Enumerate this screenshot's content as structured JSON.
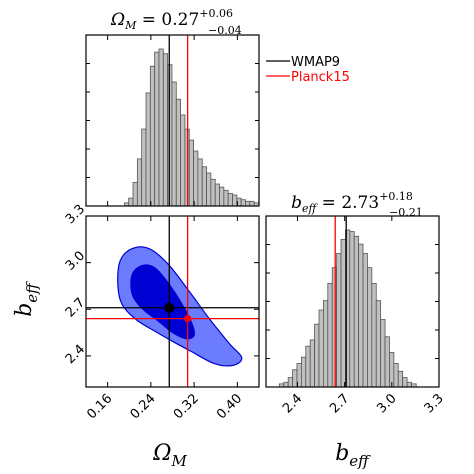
{
  "chart_data": [
    {
      "type": "histogram",
      "panel": "omega_m_marginal",
      "title": {
        "main": "Ω",
        "sub": "M",
        "eq": " = 0.27",
        "sup": "+0.06",
        "inf": "−0.04"
      },
      "x_range": [
        0.12,
        0.44
      ],
      "bin_edges": [
        0.191,
        0.199,
        0.207,
        0.215,
        0.223,
        0.231,
        0.239,
        0.247,
        0.255,
        0.263,
        0.271,
        0.279,
        0.287,
        0.295,
        0.303,
        0.311,
        0.319,
        0.327,
        0.335,
        0.343,
        0.351,
        0.359,
        0.367,
        0.375,
        0.383,
        0.391,
        0.399,
        0.407,
        0.415,
        0.423,
        0.431,
        0.44
      ],
      "values": [
        0.02,
        0.05,
        0.15,
        0.3,
        0.49,
        0.72,
        0.89,
        0.98,
        1.0,
        0.97,
        0.9,
        0.79,
        0.68,
        0.58,
        0.49,
        0.42,
        0.35,
        0.3,
        0.25,
        0.21,
        0.17,
        0.14,
        0.12,
        0.1,
        0.08,
        0.07,
        0.05,
        0.04,
        0.03,
        0.03,
        0.02
      ],
      "lines": {
        "wmap9": 0.274,
        "planck15": 0.308
      }
    },
    {
      "type": "contour",
      "panel": "joint",
      "x_label": {
        "main": "Ω",
        "sub": "M"
      },
      "y_label": {
        "main": "b",
        "sub": "eff"
      },
      "x_range": [
        0.12,
        0.44
      ],
      "y_range": [
        2.2,
        3.3
      ],
      "x_ticks": [
        "0.16",
        "0.24",
        "0.32",
        "0.40"
      ],
      "x_tick_values": [
        0.16,
        0.24,
        0.32,
        0.4
      ],
      "y_ticks": [
        "2.4",
        "2.7",
        "3.0",
        "3.3"
      ],
      "y_tick_values": [
        2.4,
        2.7,
        3.0,
        3.3
      ],
      "confidence_68": [
        [
          0.205,
          2.92
        ],
        [
          0.222,
          2.98
        ],
        [
          0.246,
          2.97
        ],
        [
          0.272,
          2.87
        ],
        [
          0.3,
          2.72
        ],
        [
          0.317,
          2.6
        ],
        [
          0.32,
          2.53
        ],
        [
          0.305,
          2.51
        ],
        [
          0.28,
          2.55
        ],
        [
          0.255,
          2.62
        ],
        [
          0.222,
          2.71
        ],
        [
          0.205,
          2.8
        ]
      ],
      "confidence_95": [
        [
          0.179,
          2.85
        ],
        [
          0.183,
          3.01
        ],
        [
          0.205,
          3.09
        ],
        [
          0.237,
          3.09
        ],
        [
          0.272,
          2.99
        ],
        [
          0.312,
          2.81
        ],
        [
          0.348,
          2.64
        ],
        [
          0.385,
          2.48
        ],
        [
          0.408,
          2.39
        ],
        [
          0.393,
          2.34
        ],
        [
          0.358,
          2.35
        ],
        [
          0.314,
          2.43
        ],
        [
          0.282,
          2.49
        ],
        [
          0.252,
          2.55
        ],
        [
          0.214,
          2.63
        ],
        [
          0.187,
          2.73
        ]
      ],
      "points": [
        {
          "name": "WMAP9",
          "x": 0.274,
          "y": 2.71
        },
        {
          "name": "Planck15",
          "x": 0.308,
          "y": 2.64
        }
      ]
    },
    {
      "type": "histogram",
      "panel": "b_eff_marginal",
      "title": {
        "main": "b",
        "sub": "eff",
        "eq": " = 2.73",
        "sup": "+0.18",
        "inf": "−0.21"
      },
      "x_label": {
        "main": "b",
        "sub": "eff"
      },
      "x_range": [
        2.2,
        3.3
      ],
      "x_ticks": [
        "2.4",
        "2.7",
        "3.0",
        "3.3"
      ],
      "x_tick_values": [
        2.4,
        2.7,
        3.0,
        3.3
      ],
      "bin_edges": [
        2.285,
        2.313,
        2.341,
        2.369,
        2.397,
        2.425,
        2.453,
        2.481,
        2.509,
        2.537,
        2.565,
        2.593,
        2.621,
        2.649,
        2.677,
        2.705,
        2.733,
        2.761,
        2.789,
        2.817,
        2.845,
        2.873,
        2.901,
        2.929,
        2.957,
        2.985,
        3.013,
        3.041,
        3.069,
        3.097,
        3.125,
        3.155
      ],
      "values": [
        0.02,
        0.03,
        0.06,
        0.11,
        0.15,
        0.19,
        0.26,
        0.3,
        0.4,
        0.49,
        0.55,
        0.66,
        0.76,
        0.85,
        0.94,
        1.0,
        0.99,
        0.96,
        0.91,
        0.85,
        0.76,
        0.66,
        0.55,
        0.43,
        0.32,
        0.22,
        0.15,
        0.1,
        0.06,
        0.03,
        0.02
      ],
      "lines": {
        "wmap9": 2.71,
        "planck15": 2.64
      }
    }
  ],
  "legend": {
    "items": [
      {
        "label": "WMAP9",
        "color": "#000000"
      },
      {
        "label": "Planck15",
        "color": "#ff0000"
      }
    ]
  },
  "colors": {
    "hist_fill": "#c0c0c0",
    "hist_stroke": "#555555",
    "contour_68": "#0000d2",
    "contour_95": "#6b7cff",
    "wmap9": "#000000",
    "planck15": "#ff0000"
  }
}
